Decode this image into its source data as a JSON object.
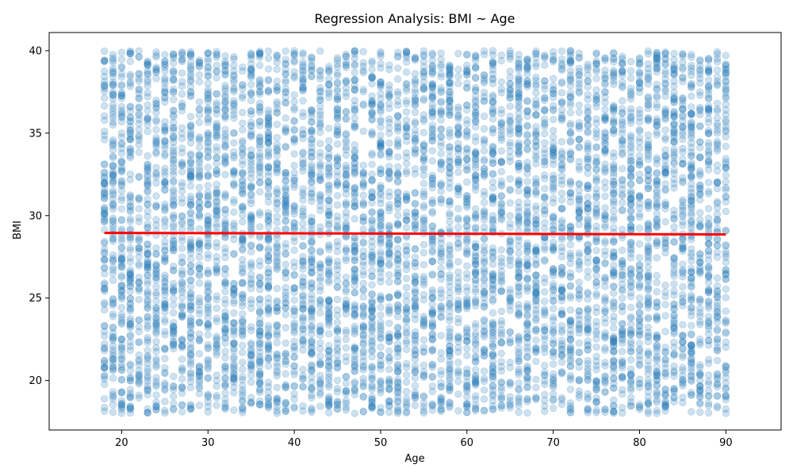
{
  "chart_data": {
    "type": "scatter",
    "title": "Regression Analysis: BMI ~ Age",
    "xlabel": "Age",
    "ylabel": "BMI",
    "xlim": [
      11.6,
      96.4
    ],
    "ylim": [
      17.0,
      41.1
    ],
    "x_ticks": [
      20,
      30,
      40,
      50,
      60,
      70,
      80,
      90
    ],
    "y_ticks": [
      20,
      25,
      30,
      35,
      40
    ],
    "x_tick_labels": [
      "20",
      "30",
      "40",
      "50",
      "60",
      "70",
      "80",
      "90"
    ],
    "y_tick_labels": [
      "20",
      "25",
      "30",
      "35",
      "40"
    ],
    "grid": false,
    "legend": "none",
    "scatter": {
      "x_domain": [
        18,
        90
      ],
      "y_domain": [
        18,
        40
      ],
      "marker": "circle",
      "marker_alpha": 0.22,
      "approx_points_per_age": 90,
      "distribution": "uniform"
    },
    "regression_line": {
      "x": [
        18,
        90
      ],
      "y": [
        28.95,
        28.86
      ]
    },
    "colors": {
      "points": "#1f77b4",
      "regression_line": "#ff0000",
      "axes": "#000000",
      "background": "#ffffff"
    }
  }
}
